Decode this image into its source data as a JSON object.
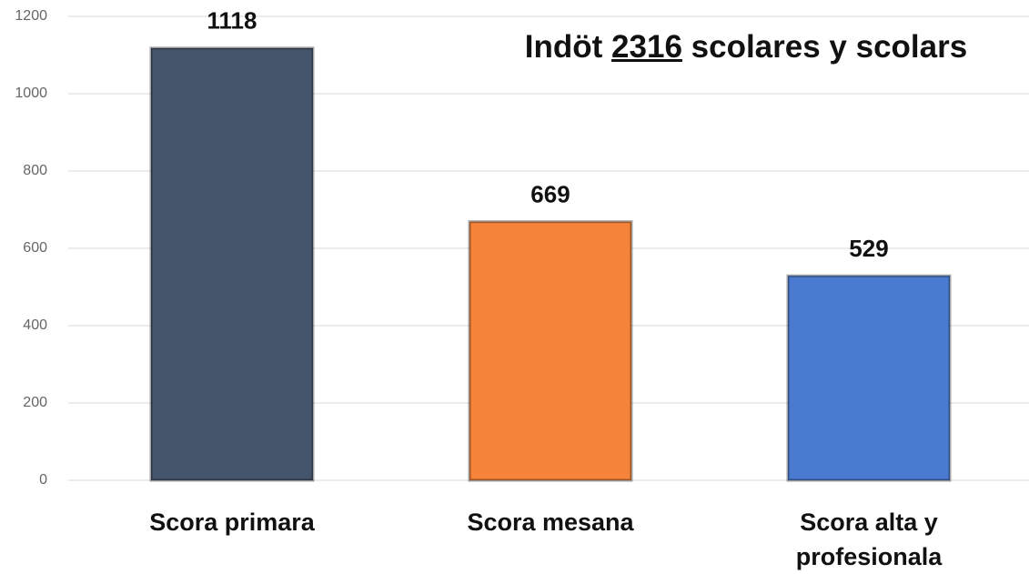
{
  "chart_data": {
    "type": "bar",
    "title_parts": [
      "Indöt ",
      "2316",
      " scolares y scolars"
    ],
    "categories": [
      "Scora primara",
      "Scora mesana",
      "Scora alta y profesionala"
    ],
    "values": [
      1118,
      669,
      529
    ],
    "colors": [
      "#44546a",
      "#f5843a",
      "#4a7bd0"
    ],
    "ylim": [
      0,
      1200
    ],
    "yticks": [
      0,
      200,
      400,
      600,
      800,
      1000,
      1200
    ],
    "grid": true
  }
}
